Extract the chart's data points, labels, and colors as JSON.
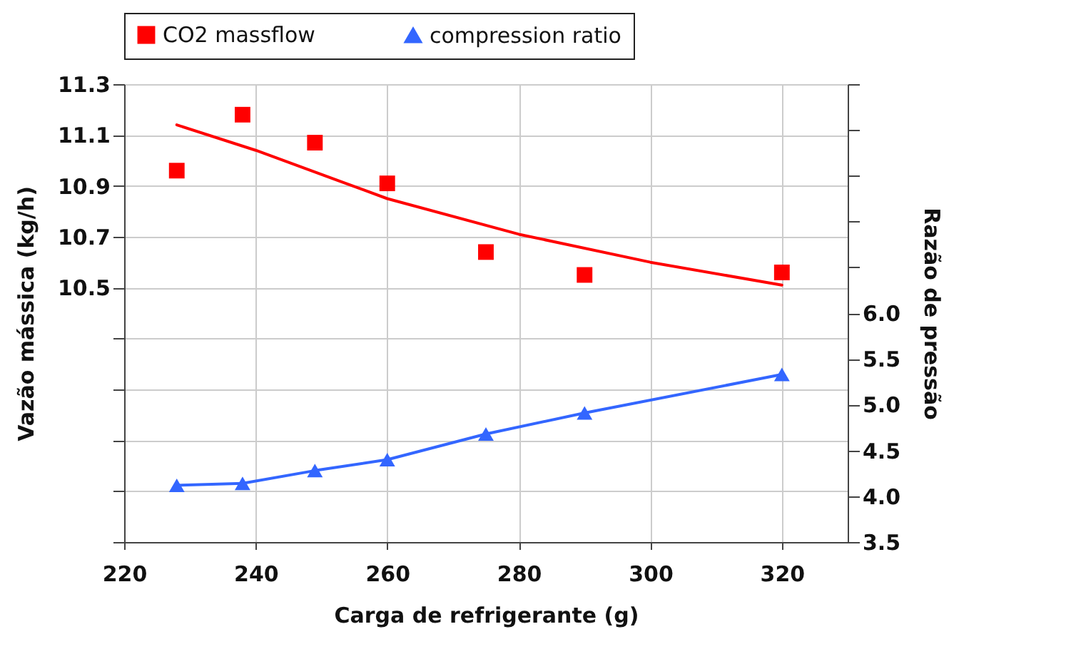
{
  "chart_data": {
    "type": "scatter",
    "xlabel": "Carga de refrigerante (g)",
    "ylabel": "Vazão mássica (kg/h)",
    "y2label": "Razão de pressão",
    "xlim": [
      220,
      330
    ],
    "xticks": [
      220,
      240,
      260,
      280,
      300,
      320
    ],
    "ylim": [
      9.5,
      11.3
    ],
    "yticks": [
      {
        "value": 9.5,
        "label": null
      },
      {
        "value": 9.7,
        "label": null
      },
      {
        "value": 9.9,
        "label": null
      },
      {
        "value": 10.1,
        "label": null
      },
      {
        "value": 10.3,
        "label": null
      },
      10.5,
      10.7,
      10.9,
      11.1,
      11.3
    ],
    "y2lim": [
      3.5,
      8.5
    ],
    "y2ticks": [
      3.5,
      {
        "value": 4,
        "label": "4.0"
      },
      4.5,
      {
        "value": 5,
        "label": "5.0"
      },
      5.5,
      {
        "value": 6,
        "label": "6.0"
      },
      {
        "value": 6.5,
        "label": null
      },
      {
        "value": 7.0,
        "label": null
      },
      {
        "value": 7.5,
        "label": null
      },
      {
        "value": 8.0,
        "label": null
      },
      {
        "value": 8.5,
        "label": null
      }
    ],
    "grid": true,
    "legend": "top",
    "series": [
      {
        "name": "CO2 massflow",
        "marker": "square",
        "color": "#ff0000",
        "x": [
          228,
          238,
          249,
          260,
          275,
          290,
          320
        ],
        "values": [
          10.96,
          11.18,
          11.07,
          10.91,
          10.64,
          10.55,
          10.56
        ]
      },
      {
        "type": "line",
        "marker": "none",
        "color": "#ff0000",
        "x": [
          228,
          240,
          260,
          280,
          300,
          320
        ],
        "values": [
          11.14,
          11.04,
          10.85,
          10.71,
          10.6,
          10.51
        ]
      },
      {
        "name": "compression ratio",
        "type": "line",
        "marker": "triangle",
        "axis": "y2",
        "color": "#3366ff",
        "x": [
          228,
          238,
          249,
          260,
          275,
          290,
          320
        ],
        "values": [
          4.12,
          4.14,
          4.28,
          4.4,
          4.68,
          4.91,
          5.33
        ]
      }
    ]
  }
}
